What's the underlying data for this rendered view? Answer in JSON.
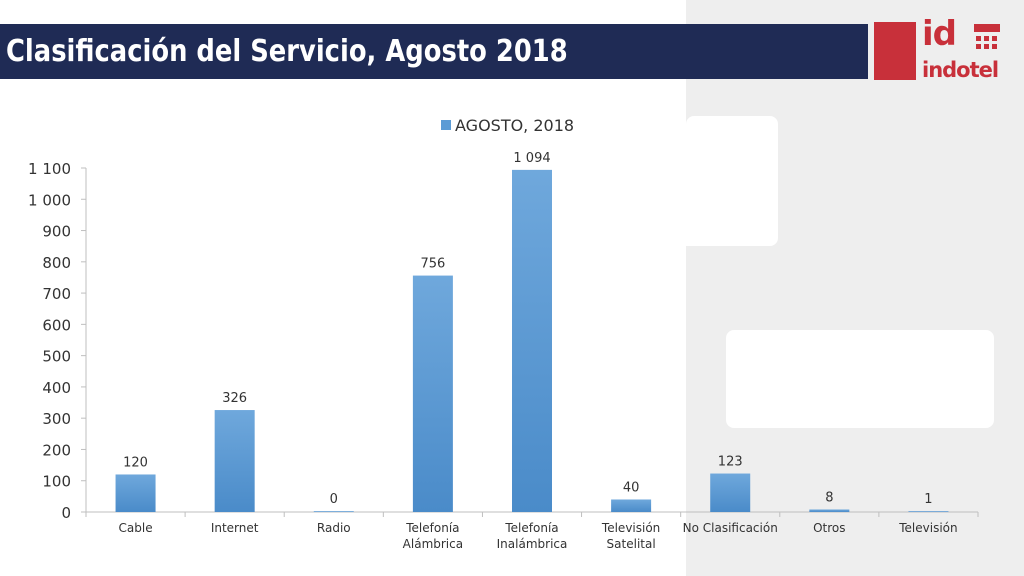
{
  "header": {
    "title": "Clasificación del Servicio, Agosto 2018",
    "logo": {
      "mark": "id",
      "word": "indotel",
      "icon": "indotel-logo-icon"
    }
  },
  "colors": {
    "title_bar": "#1f2b55",
    "bar": "#5b9bd5",
    "brand": "#c8303a",
    "panel": "#eeeeee"
  },
  "chart_data": {
    "type": "bar",
    "categories": [
      "Cable",
      "Internet",
      "Radio",
      "Telefonía Alámbrica",
      "Telefonía Inalámbrica",
      "Televisión Satelital",
      "No Clasificación",
      "Otros",
      "Televisión"
    ],
    "category_lines": [
      [
        "Cable"
      ],
      [
        "Internet"
      ],
      [
        "Radio"
      ],
      [
        "Telefonía",
        "Alámbrica"
      ],
      [
        "Telefonía",
        "Inalámbrica"
      ],
      [
        "Televisión",
        "Satelital"
      ],
      [
        "No Clasificación"
      ],
      [
        "Otros"
      ],
      [
        "Televisión"
      ]
    ],
    "series": [
      {
        "name": "AGOSTO, 2018",
        "values": [
          120,
          326,
          0,
          756,
          1094,
          40,
          123,
          8,
          1
        ]
      }
    ],
    "data_labels": [
      "120",
      "326",
      "0",
      "756",
      "1 094",
      "40",
      "123",
      "8",
      "1"
    ],
    "yticks": [
      0,
      100,
      200,
      300,
      400,
      500,
      600,
      700,
      800,
      900,
      1000,
      1100
    ],
    "ytick_labels": [
      "0",
      "100",
      "200",
      "300",
      "400",
      "500",
      "600",
      "700",
      "800",
      "900",
      "1 000",
      "1 100"
    ],
    "ylim": [
      0,
      1100
    ],
    "grid": false,
    "legend": "top"
  }
}
